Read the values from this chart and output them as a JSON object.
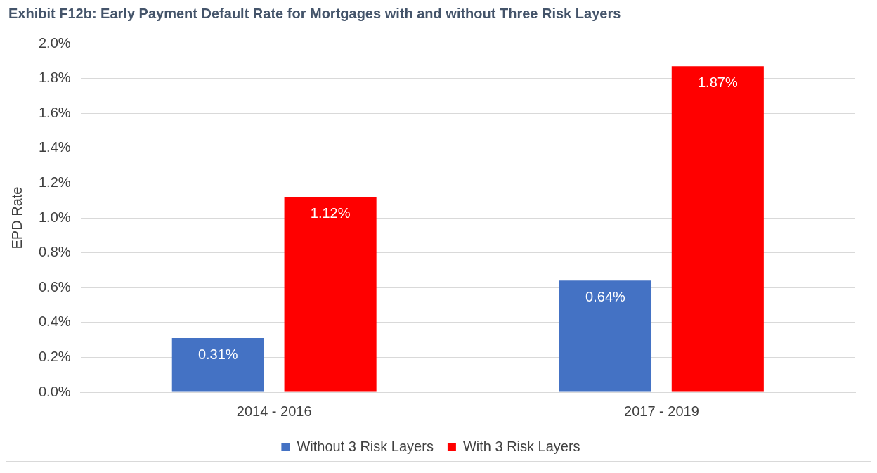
{
  "chart_data": {
    "type": "bar",
    "title": "Exhibit F12b: Early Payment Default Rate for Mortgages with and without Three Risk Layers",
    "ylabel": "EPD Rate",
    "categories": [
      "2014 - 2016",
      "2017 - 2019"
    ],
    "series": [
      {
        "name": "Without 3 Risk Layers",
        "color": "#4472c4",
        "values": [
          0.31,
          0.64
        ],
        "value_labels": [
          "0.31%",
          "0.64%"
        ]
      },
      {
        "name": "With 3 Risk Layers",
        "color": "#ff0000",
        "values": [
          1.12,
          1.87
        ],
        "value_labels": [
          "1.12%",
          "1.87%"
        ]
      }
    ],
    "ylim": [
      0,
      2
    ],
    "yticks": [
      {
        "value": 0,
        "label": "0.0%"
      },
      {
        "value": 0.2,
        "label": "0.2%"
      },
      {
        "value": 0.4,
        "label": "0.4%"
      },
      {
        "value": 0.6,
        "label": "0.6%"
      },
      {
        "value": 0.8,
        "label": "0.8%"
      },
      {
        "value": 1,
        "label": "1.0%"
      },
      {
        "value": 1.2,
        "label": "1.2%"
      },
      {
        "value": 1.4,
        "label": "1.4%"
      },
      {
        "value": 1.6,
        "label": "1.6%"
      },
      {
        "value": 1.8,
        "label": "1.8%"
      },
      {
        "value": 2,
        "label": "2.0%"
      }
    ],
    "grid": "y",
    "legend": "bottom"
  }
}
